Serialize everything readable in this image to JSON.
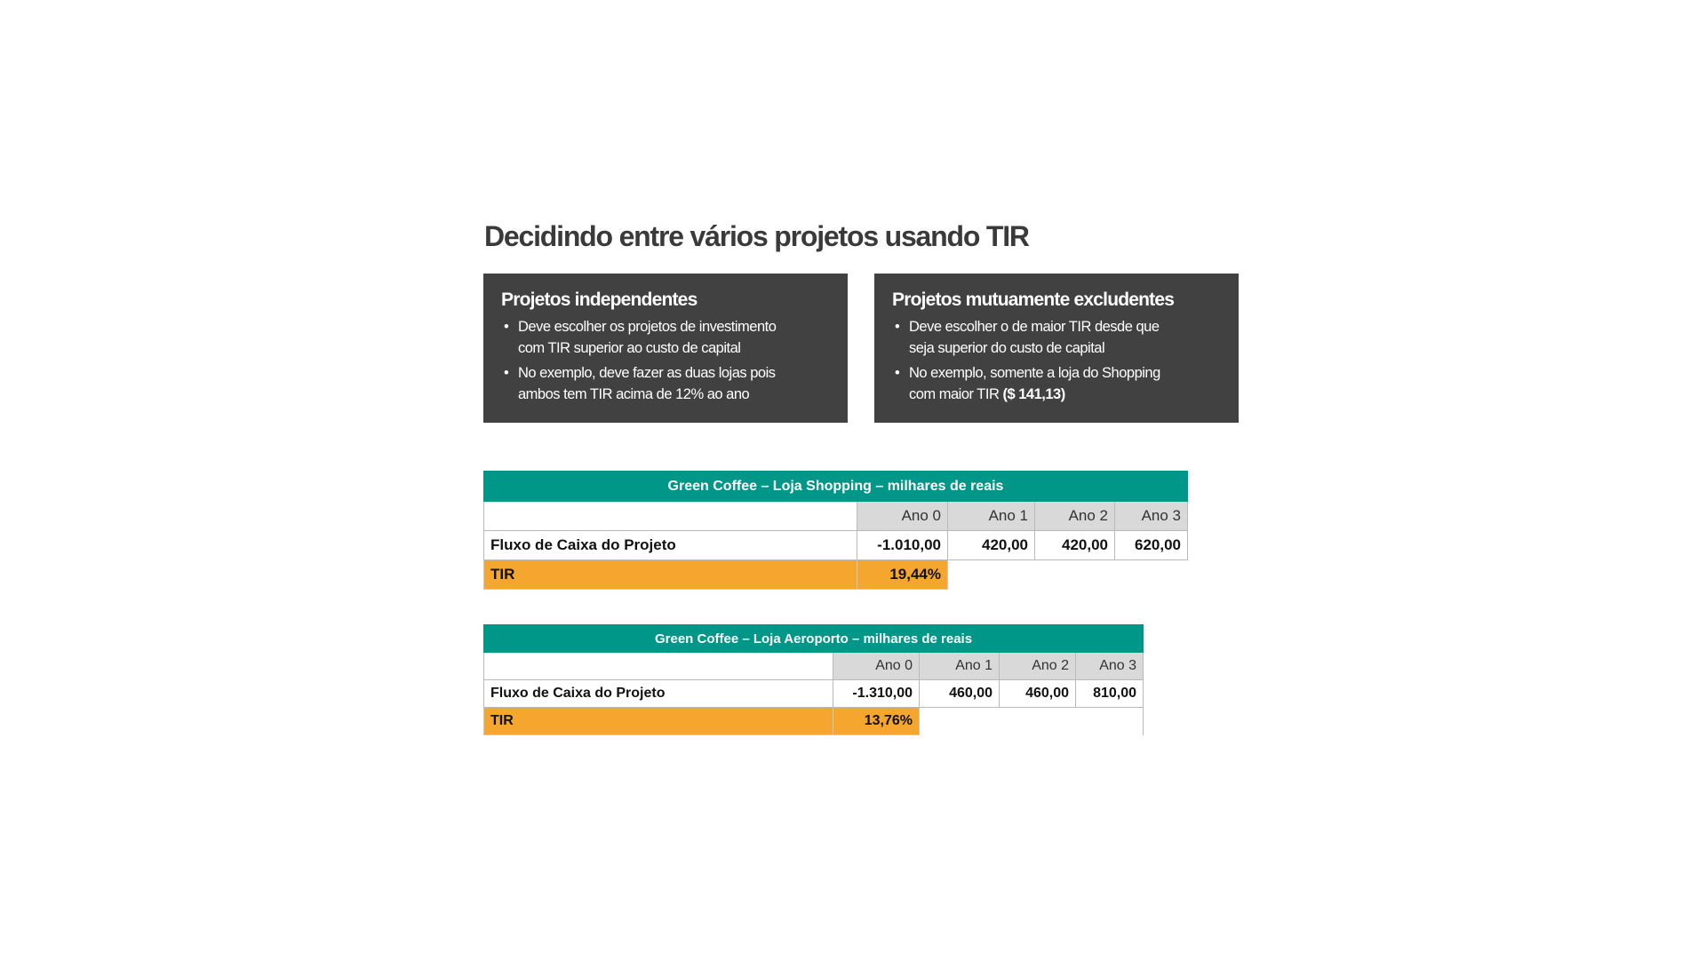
{
  "title": "Decidindo entre vários projetos usando TIR",
  "boxes": [
    {
      "heading": "Projetos independentes",
      "bullets": [
        [
          "Deve escolher os projetos de investimento",
          "com TIR superior ao custo de capital"
        ],
        [
          "No exemplo, deve fazer as duas lojas pois",
          "ambos tem TIR acima de 12% ao ano"
        ]
      ]
    },
    {
      "heading": "Projetos mutuamente excludentes",
      "bullets": [
        [
          "Deve escolher o de maior TIR desde que",
          "seja superior do custo de capital"
        ],
        [
          "No exemplo, somente a loja do Shopping",
          "com maior TIR",
          "($ 141,13)"
        ]
      ]
    }
  ],
  "bullet_char": "•",
  "tables": [
    {
      "caption": "Green Coffee – Loja Shopping – milhares de reais",
      "years": [
        "Ano 0",
        "Ano 1",
        "Ano 2",
        "Ano 3"
      ],
      "row_label": "Fluxo de Caixa do Projeto",
      "values": [
        "-1.010,00",
        "420,00",
        "420,00",
        "620,00"
      ],
      "tir_label": "TIR",
      "tir_value": "19,44%"
    },
    {
      "caption": "Green Coffee – Loja Aeroporto – milhares de reais",
      "years": [
        "Ano 0",
        "Ano 1",
        "Ano 2",
        "Ano 3"
      ],
      "row_label": "Fluxo de Caixa do Projeto",
      "values": [
        "-1.310,00",
        "460,00",
        "460,00",
        "810,00"
      ],
      "tir_label": "TIR",
      "tir_value": "13,76%"
    }
  ],
  "colors": {
    "box_bg": "#414141",
    "table_header": "#009688",
    "tir_highlight": "#f4a62e",
    "year_header_bg": "#d9d9d9"
  }
}
